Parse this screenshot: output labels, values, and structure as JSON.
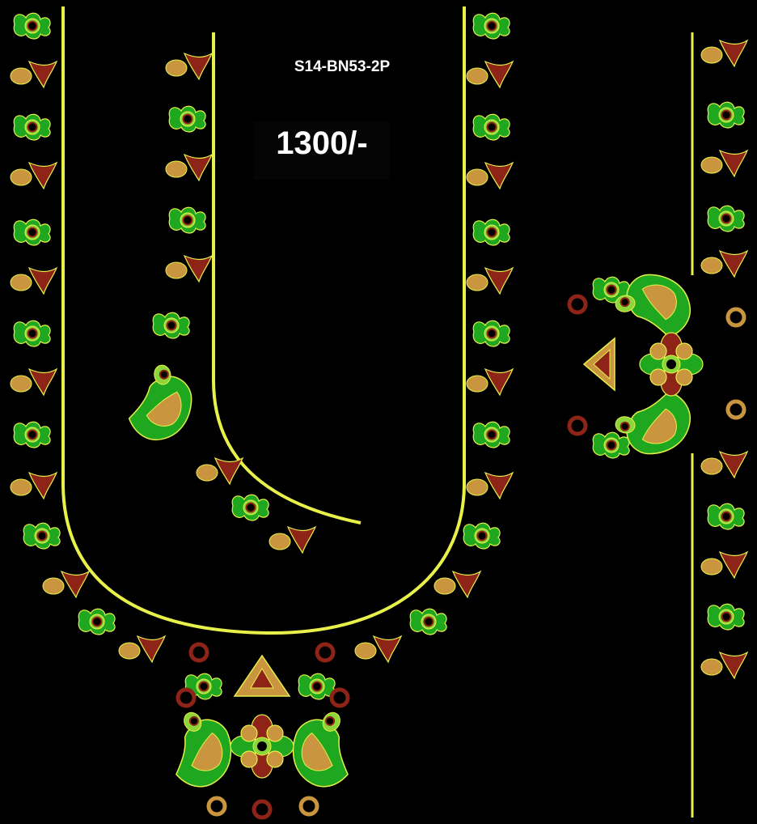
{
  "design": {
    "code": "S14-BN53-2P",
    "price": "1300/-"
  },
  "colors": {
    "background": "#000000",
    "outline": "#e8f04a",
    "maroon": "#8e2418",
    "gold": "#c9953e",
    "green": "#1fa81f",
    "lime": "#8cd63a",
    "red_dark": "#6a1410"
  }
}
